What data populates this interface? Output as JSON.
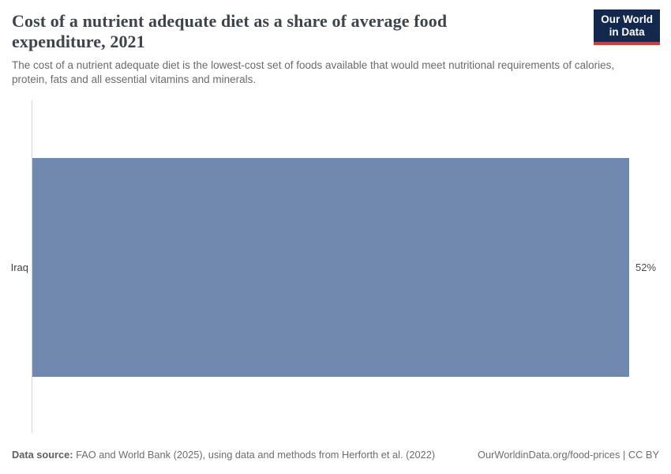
{
  "header": {
    "title": "Cost of a nutrient adequate diet as a share of average food expenditure, 2021",
    "subtitle": "The cost of a nutrient adequate diet is the lowest-cost set of foods available that would meet nutritional requirements of calories, protein, fats and all essential vitamins and minerals.",
    "logo": {
      "line1": "Our World",
      "line2": "in Data"
    }
  },
  "chart_data": {
    "type": "bar",
    "orientation": "horizontal",
    "categories": [
      "Iraq"
    ],
    "values": [
      52
    ],
    "value_labels": [
      "52%"
    ],
    "title": "Cost of a nutrient adequate diet as a share of average food expenditure, 2021",
    "xlabel": "",
    "ylabel": "",
    "xlim": [
      0,
      52
    ],
    "grid": false,
    "legend": false,
    "bar_color": "#7189ae"
  },
  "footer": {
    "source_label": "Data source:",
    "source_text": "FAO and World Bank (2025), using data and methods from Herforth et al. (2022)",
    "right_text": "OurWorldinData.org/food-prices | CC BY"
  },
  "colors": {
    "bar": "#7189ae",
    "logo_background": "#12294d",
    "logo_stripe": "#d93a2d",
    "axis_line": "#d4d4d4",
    "title_text": "#3d444c",
    "subtitle_text": "#6b6b6b"
  }
}
